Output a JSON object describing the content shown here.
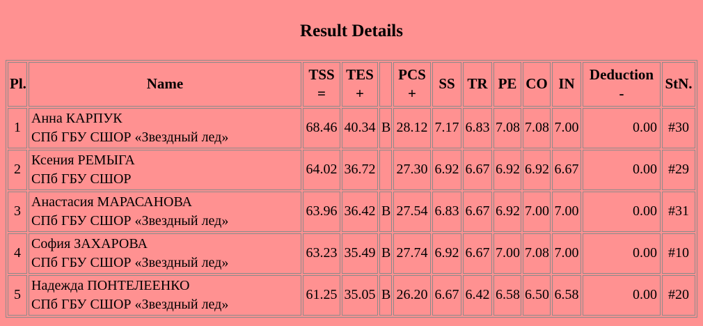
{
  "page": {
    "title": "Result Details",
    "colors": {
      "background": "#ff9191",
      "border": "#8a8a8a",
      "text": "#000000"
    }
  },
  "table": {
    "headers": {
      "pl": "Pl.",
      "name": "Name",
      "tss": "TSS\n=",
      "tes": "TES\n+",
      "bonus": "",
      "pcs": "PCS\n+",
      "ss": "SS",
      "tr": "TR",
      "pe": "PE",
      "co": "CO",
      "in": "IN",
      "deduction": "Deduction\n-",
      "stn": "StN."
    },
    "rows": [
      {
        "pl": "1",
        "name": "Анна КАРПУК\nСПб ГБУ СШОР «Звездный лед»",
        "tss": "68.46",
        "tes": "40.34",
        "bonus": "B",
        "pcs": "28.12",
        "ss": "7.17",
        "tr": "6.83",
        "pe": "7.08",
        "co": "7.08",
        "in": "7.00",
        "deduction": "0.00",
        "stn": "#30"
      },
      {
        "pl": "2",
        "name": "Ксения РЕМЫГА\nСПб ГБУ СШОР",
        "tss": "64.02",
        "tes": "36.72",
        "bonus": "",
        "pcs": "27.30",
        "ss": "6.92",
        "tr": "6.67",
        "pe": "6.92",
        "co": "6.92",
        "in": "6.67",
        "deduction": "0.00",
        "stn": "#29"
      },
      {
        "pl": "3",
        "name": "Анастасия МАРАСАНОВА\nСПб ГБУ СШОР «Звездный лед»",
        "tss": "63.96",
        "tes": "36.42",
        "bonus": "B",
        "pcs": "27.54",
        "ss": "6.83",
        "tr": "6.67",
        "pe": "6.92",
        "co": "7.00",
        "in": "7.00",
        "deduction": "0.00",
        "stn": "#31"
      },
      {
        "pl": "4",
        "name": "София ЗАХАРОВА\nСПб ГБУ СШОР «Звездный лед»",
        "tss": "63.23",
        "tes": "35.49",
        "bonus": "B",
        "pcs": "27.74",
        "ss": "6.92",
        "tr": "6.67",
        "pe": "7.00",
        "co": "7.08",
        "in": "7.00",
        "deduction": "0.00",
        "stn": "#10"
      },
      {
        "pl": "5",
        "name": "Надежда ПОНТЕЛЕЕНКО\nСПб ГБУ СШОР «Звездный лед»",
        "tss": "61.25",
        "tes": "35.05",
        "bonus": "B",
        "pcs": "26.20",
        "ss": "6.67",
        "tr": "6.42",
        "pe": "6.58",
        "co": "6.50",
        "in": "6.58",
        "deduction": "0.00",
        "stn": "#20"
      }
    ]
  }
}
